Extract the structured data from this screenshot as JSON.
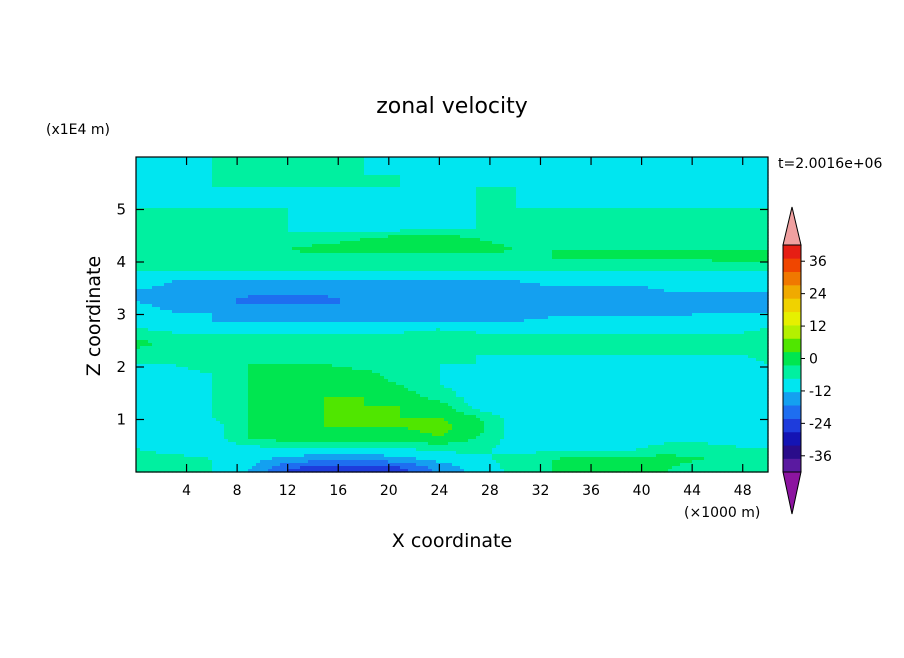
{
  "chart_data": {
    "type": "heatmap",
    "title": "zonal velocity",
    "xlabel": "X coordinate",
    "ylabel": "Z coordinate",
    "x_unit_label": "(×1000 m)",
    "z_unit_label": "(x1E4 m)",
    "time_label": "t=2.0016e+06",
    "xlim": [
      0,
      50
    ],
    "zlim": [
      0,
      6
    ],
    "x_ticks": [
      "4",
      "8",
      "12",
      "16",
      "20",
      "24",
      "28",
      "32",
      "36",
      "40",
      "44",
      "48"
    ],
    "x_tick_values": [
      4,
      8,
      12,
      16,
      20,
      24,
      28,
      32,
      36,
      40,
      44,
      48
    ],
    "z_ticks": [
      "1",
      "2",
      "3",
      "4",
      "5"
    ],
    "z_tick_values": [
      1,
      2,
      3,
      4,
      5
    ],
    "colorbar": {
      "min": -42,
      "max": 42,
      "step": 6,
      "tick_labels": [
        "36",
        "24",
        "12",
        "0",
        "-12",
        "-24",
        "-36"
      ],
      "tick_values": [
        36,
        24,
        12,
        0,
        -12,
        -24,
        -36
      ],
      "colors": [
        "#5a1aa0",
        "#2a0c8a",
        "#1414b4",
        "#1e3cdc",
        "#1e6ef0",
        "#14a0f0",
        "#00e6f0",
        "#00f0a0",
        "#00e650",
        "#50e600",
        "#b4f000",
        "#e6f000",
        "#f0d200",
        "#f0aa00",
        "#f07800",
        "#f04600",
        "#e61e14"
      ],
      "over_color": "#f0a0a0",
      "under_color": "#8c14a0"
    },
    "z_levels": [
      0.05,
      0.25,
      0.45,
      0.65,
      0.85,
      1.05,
      1.25,
      1.45,
      1.65,
      1.85,
      2.05,
      2.25,
      2.45,
      2.65,
      2.85,
      3.05,
      3.25,
      3.45,
      3.65,
      3.85,
      4.05,
      4.25,
      4.45,
      4.65,
      4.85,
      5.05,
      5.25,
      5.45,
      5.65,
      5.85
    ],
    "x_nodes": [
      0,
      3,
      6,
      9,
      12,
      15,
      18,
      21,
      24,
      27,
      30,
      33,
      36,
      39,
      42,
      45,
      48,
      50
    ],
    "values": [
      [
        3,
        2,
        0,
        -6,
        -18,
        -24,
        -24,
        -20,
        -10,
        -4,
        2,
        6,
        6,
        6,
        6,
        3,
        3,
        3
      ],
      [
        3,
        2,
        0,
        -4,
        -8,
        -10,
        -10,
        -8,
        -4,
        -2,
        3,
        6,
        8,
        8,
        8,
        6,
        6,
        6
      ],
      [
        0,
        -3,
        -3,
        -2,
        0,
        0,
        0,
        0,
        2,
        2,
        -3,
        -3,
        -2,
        -2,
        3,
        3,
        0,
        0
      ],
      [
        -3,
        -4,
        -3,
        6,
        9,
        9,
        9,
        9,
        12,
        6,
        -3,
        -3,
        -4,
        -4,
        -3,
        -3,
        -3,
        -3
      ],
      [
        -3,
        -4,
        -3,
        6,
        9,
        12,
        12,
        12,
        14,
        9,
        -3,
        -4,
        -4,
        -4,
        -4,
        -4,
        -3,
        -3
      ],
      [
        -3,
        -4,
        0,
        6,
        9,
        12,
        12,
        12,
        12,
        6,
        -3,
        -6,
        -6,
        -6,
        -6,
        -6,
        -3,
        -3
      ],
      [
        -3,
        -4,
        0,
        6,
        9,
        12,
        12,
        12,
        9,
        -3,
        -6,
        -6,
        -6,
        -6,
        -6,
        -6,
        -3,
        -3
      ],
      [
        -3,
        -3,
        0,
        6,
        9,
        12,
        12,
        9,
        3,
        -3,
        -6,
        -6,
        -6,
        -6,
        -6,
        -6,
        -3,
        -3
      ],
      [
        -3,
        -3,
        0,
        6,
        9,
        12,
        9,
        6,
        0,
        -3,
        -6,
        -6,
        -6,
        -6,
        -6,
        -6,
        -3,
        -3
      ],
      [
        -3,
        -3,
        0,
        6,
        9,
        9,
        9,
        3,
        0,
        -3,
        -4,
        -6,
        -6,
        -6,
        -6,
        -4,
        -3,
        -3
      ],
      [
        0,
        0,
        3,
        6,
        6,
        6,
        3,
        0,
        0,
        0,
        -3,
        -3,
        -3,
        -3,
        -3,
        -3,
        -3,
        0
      ],
      [
        3,
        0,
        3,
        3,
        3,
        3,
        3,
        3,
        0,
        0,
        0,
        0,
        0,
        0,
        0,
        0,
        0,
        3
      ],
      [
        9,
        3,
        3,
        0,
        0,
        0,
        0,
        3,
        3,
        3,
        3,
        3,
        6,
        6,
        3,
        3,
        6,
        6
      ],
      [
        3,
        0,
        0,
        0,
        0,
        0,
        0,
        0,
        3,
        0,
        0,
        0,
        0,
        0,
        0,
        0,
        0,
        3
      ],
      [
        -3,
        -6,
        -6,
        -6,
        -6,
        -6,
        -6,
        -6,
        -6,
        -6,
        -6,
        -4,
        -4,
        -4,
        -4,
        -4,
        -4,
        -4
      ],
      [
        -4,
        -6,
        -6,
        -8,
        -8,
        -8,
        -8,
        -8,
        -8,
        -8,
        -8,
        -8,
        -8,
        -8,
        -8,
        -6,
        -6,
        -6
      ],
      [
        -6,
        -8,
        -10,
        -14,
        -14,
        -14,
        -10,
        -8,
        -8,
        -8,
        -8,
        -8,
        -8,
        -8,
        -8,
        -8,
        -8,
        -8
      ],
      [
        -6,
        -8,
        -8,
        -10,
        -10,
        -10,
        -10,
        -8,
        -8,
        -8,
        -8,
        -8,
        -8,
        -8,
        -6,
        -6,
        -6,
        -6
      ],
      [
        -3,
        -6,
        -6,
        -6,
        -6,
        -6,
        -6,
        -6,
        -6,
        -6,
        -6,
        -4,
        -4,
        -4,
        -4,
        -4,
        -4,
        -4
      ],
      [
        0,
        0,
        0,
        0,
        0,
        0,
        0,
        0,
        0,
        0,
        0,
        0,
        0,
        0,
        0,
        0,
        0,
        0
      ],
      [
        3,
        3,
        3,
        3,
        3,
        3,
        3,
        3,
        3,
        3,
        3,
        6,
        6,
        6,
        6,
        6,
        9,
        9
      ],
      [
        6,
        6,
        6,
        6,
        6,
        9,
        9,
        9,
        9,
        9,
        6,
        6,
        6,
        6,
        6,
        6,
        6,
        6
      ],
      [
        0,
        0,
        0,
        0,
        0,
        3,
        6,
        9,
        9,
        6,
        3,
        3,
        3,
        3,
        3,
        3,
        3,
        3
      ],
      [
        0,
        0,
        0,
        0,
        0,
        -3,
        -3,
        -3,
        0,
        0,
        0,
        0,
        0,
        0,
        0,
        0,
        0,
        0
      ],
      [
        0,
        0,
        0,
        0,
        0,
        -3,
        -4,
        -3,
        -3,
        0,
        0,
        0,
        0,
        0,
        0,
        0,
        0,
        0
      ],
      [
        0,
        0,
        0,
        0,
        0,
        0,
        0,
        0,
        0,
        0,
        0,
        0,
        0,
        0,
        0,
        0,
        0,
        0
      ],
      [
        0,
        -3,
        -3,
        -3,
        -3,
        -3,
        -3,
        -3,
        -3,
        0,
        0,
        -3,
        -3,
        -3,
        -3,
        -3,
        -3,
        -3
      ],
      [
        0,
        0,
        0,
        0,
        0,
        0,
        0,
        0,
        0,
        0,
        0,
        -3,
        -3,
        -3,
        -3,
        -3,
        -3,
        0
      ],
      [
        -3,
        -3,
        0,
        0,
        0,
        0,
        0,
        0,
        -3,
        -3,
        -3,
        -3,
        -3,
        0,
        0,
        0,
        0,
        0
      ],
      [
        -3,
        -3,
        0,
        0,
        0,
        0,
        0,
        -3,
        -3,
        -3,
        -3,
        -3,
        -3,
        -3,
        -3,
        -3,
        -3,
        -3
      ]
    ]
  }
}
